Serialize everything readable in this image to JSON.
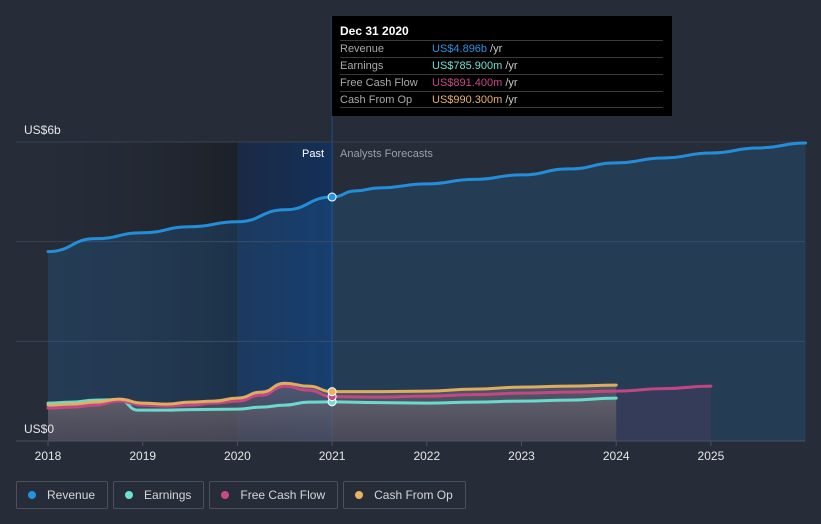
{
  "tooltip": {
    "date": "Dec 31 2020",
    "rows": [
      {
        "label": "Revenue",
        "value": "US$4.896b",
        "unit": "/yr",
        "color": "#2394df"
      },
      {
        "label": "Earnings",
        "value": "US$785.900m",
        "unit": "/yr",
        "color": "#6ce2d4"
      },
      {
        "label": "Free Cash Flow",
        "value": "US$891.400m",
        "unit": "/yr",
        "color": "#c94886"
      },
      {
        "label": "Cash From Op",
        "value": "US$990.300m",
        "unit": "/yr",
        "color": "#e8b25f"
      }
    ]
  },
  "legend": [
    {
      "label": "Revenue",
      "color": "#2394df"
    },
    {
      "label": "Earnings",
      "color": "#6ce2d4"
    },
    {
      "label": "Free Cash Flow",
      "color": "#c94886"
    },
    {
      "label": "Cash From Op",
      "color": "#e8b25f"
    }
  ],
  "chart_data": {
    "type": "line",
    "title": "",
    "xlabel": "",
    "ylabel": "",
    "ylim": [
      0,
      6
    ],
    "xlim": [
      2018,
      2026
    ],
    "y_tick_labels": [
      "US$0",
      "US$6b"
    ],
    "x_tick_labels": [
      "2018",
      "2019",
      "2020",
      "2021",
      "2022",
      "2023",
      "2024",
      "2025"
    ],
    "x_ticks": [
      2018,
      2019,
      2020,
      2021,
      2022,
      2023,
      2024,
      2025
    ],
    "grid": true,
    "past_label": "Past",
    "forecast_label": "Analysts Forecasts",
    "divider_x": 2021,
    "highlight_start": 2020,
    "legend_position": "bottom-left",
    "units": "US$ billions",
    "series": [
      {
        "name": "Revenue",
        "color": "#2394df",
        "x": [
          2018,
          2018.5,
          2019,
          2019.5,
          2020,
          2020.5,
          2021,
          2021.25,
          2021.5,
          2022,
          2022.5,
          2023,
          2023.5,
          2024,
          2024.5,
          2025,
          2025.5,
          2026
        ],
        "values": [
          3.8,
          4.06,
          4.18,
          4.3,
          4.4,
          4.64,
          4.896,
          5.02,
          5.08,
          5.16,
          5.25,
          5.34,
          5.46,
          5.58,
          5.68,
          5.78,
          5.88,
          5.98
        ]
      },
      {
        "name": "Earnings",
        "color": "#6ce2d4",
        "x": [
          2018,
          2018.25,
          2018.5,
          2018.75,
          2018.95,
          2019.25,
          2019.5,
          2020,
          2020.25,
          2020.5,
          2020.75,
          2021,
          2021.5,
          2022,
          2022.5,
          2023,
          2023.5,
          2024
        ],
        "values": [
          0.76,
          0.78,
          0.82,
          0.83,
          0.62,
          0.62,
          0.63,
          0.64,
          0.68,
          0.72,
          0.78,
          0.786,
          0.77,
          0.76,
          0.78,
          0.8,
          0.82,
          0.86
        ]
      },
      {
        "name": "Free Cash Flow",
        "color": "#c94886",
        "x": [
          2018,
          2018.25,
          2018.5,
          2018.75,
          2019,
          2019.25,
          2019.5,
          2019.75,
          2020,
          2020.25,
          2020.5,
          2020.75,
          2021,
          2021.5,
          2022,
          2022.5,
          2023,
          2023.5,
          2024,
          2024.5,
          2025
        ],
        "values": [
          0.66,
          0.68,
          0.72,
          0.8,
          0.72,
          0.7,
          0.72,
          0.76,
          0.8,
          0.92,
          1.1,
          1.02,
          0.891,
          0.88,
          0.9,
          0.93,
          0.96,
          0.98,
          1.0,
          1.05,
          1.1
        ]
      },
      {
        "name": "Cash From Op",
        "color": "#e8b25f",
        "x": [
          2018,
          2018.25,
          2018.5,
          2018.75,
          2019,
          2019.25,
          2019.5,
          2019.75,
          2020,
          2020.25,
          2020.5,
          2020.75,
          2021,
          2021.5,
          2022,
          2022.5,
          2023,
          2023.5,
          2024
        ],
        "values": [
          0.72,
          0.74,
          0.78,
          0.84,
          0.76,
          0.74,
          0.78,
          0.8,
          0.86,
          0.98,
          1.16,
          1.1,
          0.99,
          0.99,
          1.0,
          1.04,
          1.08,
          1.1,
          1.12
        ]
      }
    ]
  }
}
